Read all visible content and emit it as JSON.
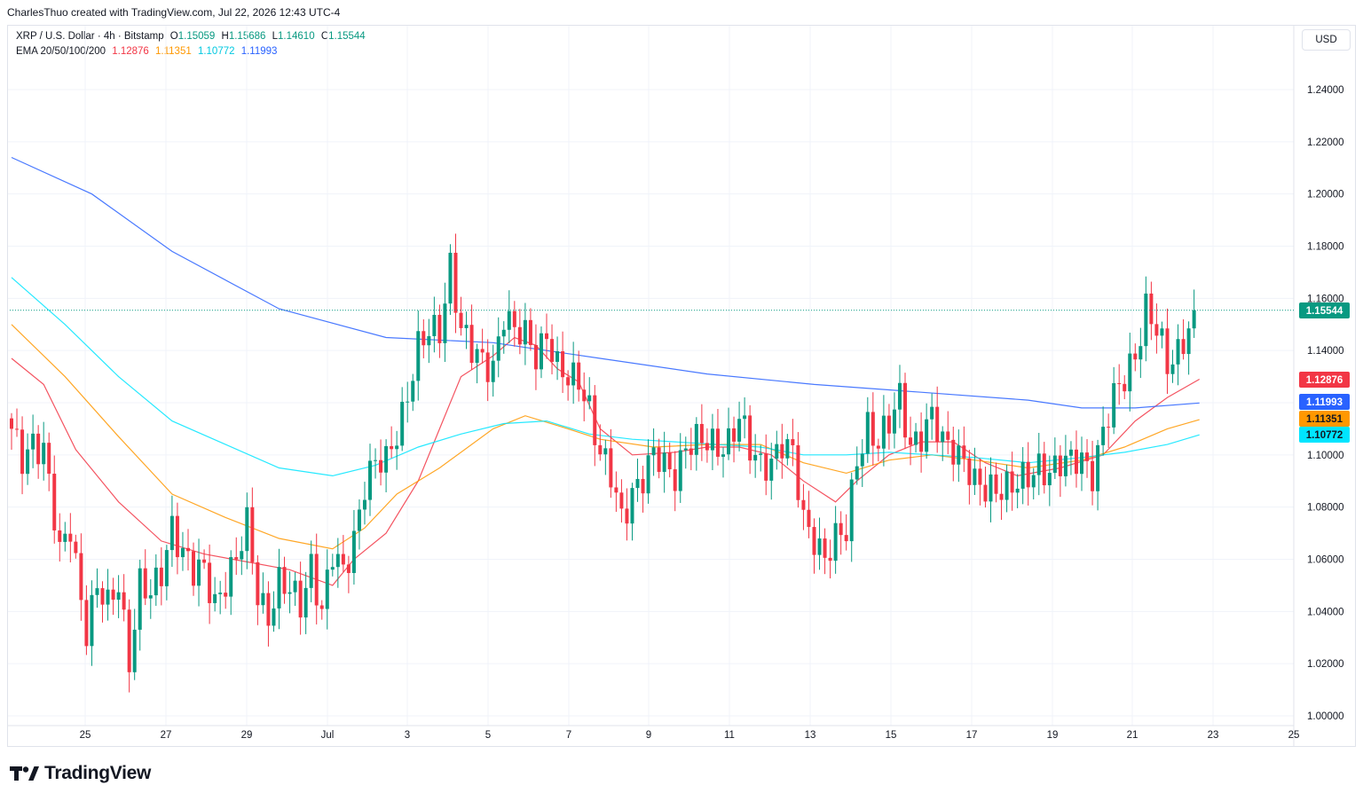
{
  "header": {
    "attribution": "CharlesThuo created with TradingView.com, Jul 22, 2026 12:43 UTC-4"
  },
  "legend": {
    "symbol": "XRP / U.S. Dollar · 4h · Bitstamp",
    "open_label": "O",
    "open": "1.15059",
    "high_label": "H",
    "high": "1.15686",
    "low_label": "L",
    "low": "1.14610",
    "close_label": "C",
    "close": "1.15544",
    "ema_label": "EMA 20/50/100/200",
    "ema20": "1.12876",
    "ema50": "1.11351",
    "ema100": "1.10772",
    "ema200": "1.11993"
  },
  "currency": "USD",
  "brand": {
    "name": "TradingView"
  },
  "colors": {
    "up": "#089981",
    "down": "#f23645",
    "ema20": "#f23645",
    "ema50": "#ff9800",
    "ema100": "#00e5ff",
    "ema200": "#2962ff",
    "grid": "#f0f3fa",
    "axis_text": "#131722"
  },
  "chart_data": {
    "type": "candlestick",
    "interval": "4h",
    "y_axis": {
      "ticks": [
        "1.24000",
        "1.22000",
        "1.20000",
        "1.18000",
        "1.16000",
        "1.14000",
        "1.12000",
        "1.10000",
        "1.08000",
        "1.06000",
        "1.04000",
        "1.02000",
        "1.00000"
      ],
      "ylim": [
        1.0,
        1.25
      ]
    },
    "x_axis": {
      "ticks": [
        "25",
        "27",
        "29",
        "Jul",
        "3",
        "5",
        "7",
        "9",
        "11",
        "13",
        "15",
        "17",
        "19",
        "21",
        "23",
        "25"
      ]
    },
    "last_price": "1.15544",
    "price_tags": [
      {
        "value": "1.15544",
        "series": "price",
        "color": "#089981"
      },
      {
        "value": "1.12876",
        "series": "EMA 20",
        "color": "#f23645"
      },
      {
        "value": "1.11993",
        "series": "EMA 200",
        "color": "#2962ff"
      },
      {
        "value": "1.11351",
        "series": "EMA 50",
        "color": "#ff9800"
      },
      {
        "value": "1.10772",
        "series": "EMA 100",
        "color": "#00e5ff"
      }
    ],
    "close_path": [
      [
        0,
        1.107
      ],
      [
        2,
        1.098
      ],
      [
        4,
        1.107
      ],
      [
        6,
        1.103
      ],
      [
        9,
        1.06
      ],
      [
        11,
        1.073
      ],
      [
        14,
        1.034
      ],
      [
        16,
        1.048
      ],
      [
        18,
        1.04
      ],
      [
        20,
        1.052
      ],
      [
        22,
        1.023
      ],
      [
        24,
        1.05
      ],
      [
        26,
        1.044
      ],
      [
        28,
        1.055
      ],
      [
        30,
        1.075
      ],
      [
        32,
        1.063
      ],
      [
        34,
        1.053
      ],
      [
        36,
        1.055
      ],
      [
        38,
        1.045
      ],
      [
        40,
        1.053
      ],
      [
        42,
        1.058
      ],
      [
        44,
        1.072
      ],
      [
        46,
        1.048
      ],
      [
        48,
        1.04
      ],
      [
        50,
        1.05
      ],
      [
        52,
        1.046
      ],
      [
        54,
        1.043
      ],
      [
        56,
        1.06
      ],
      [
        58,
        1.04
      ],
      [
        60,
        1.06
      ],
      [
        62,
        1.054
      ],
      [
        64,
        1.07
      ],
      [
        66,
        1.09
      ],
      [
        68,
        1.095
      ],
      [
        70,
        1.096
      ],
      [
        72,
        1.11
      ],
      [
        74,
        1.125
      ],
      [
        76,
        1.14
      ],
      [
        78,
        1.145
      ],
      [
        80,
        1.148
      ],
      [
        82,
        1.175
      ],
      [
        84,
        1.148
      ],
      [
        86,
        1.138
      ],
      [
        88,
        1.135
      ],
      [
        90,
        1.136
      ],
      [
        92,
        1.155
      ],
      [
        94,
        1.145
      ],
      [
        96,
        1.145
      ],
      [
        98,
        1.14
      ],
      [
        100,
        1.148
      ],
      [
        102,
        1.132
      ],
      [
        104,
        1.127
      ],
      [
        106,
        1.13
      ],
      [
        108,
        1.12
      ],
      [
        110,
        1.1
      ],
      [
        112,
        1.09
      ],
      [
        114,
        1.075
      ],
      [
        116,
        1.088
      ],
      [
        118,
        1.092
      ],
      [
        120,
        1.098
      ],
      [
        122,
        1.095
      ],
      [
        124,
        1.094
      ],
      [
        126,
        1.105
      ],
      [
        128,
        1.104
      ],
      [
        130,
        1.103
      ],
      [
        132,
        1.104
      ],
      [
        134,
        1.107
      ],
      [
        136,
        1.114
      ],
      [
        138,
        1.1
      ],
      [
        140,
        1.096
      ],
      [
        142,
        1.1
      ],
      [
        144,
        1.105
      ],
      [
        146,
        1.098
      ],
      [
        148,
        1.074
      ],
      [
        150,
        1.07
      ],
      [
        152,
        1.062
      ],
      [
        154,
        1.066
      ],
      [
        156,
        1.069
      ],
      [
        158,
        1.1
      ],
      [
        160,
        1.113
      ],
      [
        162,
        1.103
      ],
      [
        164,
        1.11
      ],
      [
        166,
        1.123
      ],
      [
        168,
        1.106
      ],
      [
        170,
        1.107
      ],
      [
        172,
        1.112
      ],
      [
        174,
        1.105
      ],
      [
        176,
        1.105
      ],
      [
        178,
        1.099
      ],
      [
        180,
        1.087
      ],
      [
        182,
        1.085
      ],
      [
        184,
        1.089
      ],
      [
        186,
        1.09
      ],
      [
        188,
        1.088
      ],
      [
        190,
        1.089
      ],
      [
        192,
        1.096
      ],
      [
        194,
        1.096
      ],
      [
        196,
        1.097
      ],
      [
        198,
        1.095
      ],
      [
        200,
        1.098
      ],
      [
        202,
        1.095
      ],
      [
        204,
        1.11
      ],
      [
        206,
        1.12
      ],
      [
        208,
        1.128
      ],
      [
        210,
        1.14
      ],
      [
        212,
        1.158
      ],
      [
        214,
        1.147
      ],
      [
        216,
        1.132
      ],
      [
        218,
        1.14
      ],
      [
        220,
        1.152
      ],
      [
        221,
        1.155
      ]
    ],
    "ema_paths": {
      "ema20": [
        [
          0,
          1.137
        ],
        [
          6,
          1.127
        ],
        [
          12,
          1.102
        ],
        [
          20,
          1.082
        ],
        [
          28,
          1.067
        ],
        [
          36,
          1.062
        ],
        [
          44,
          1.059
        ],
        [
          52,
          1.056
        ],
        [
          60,
          1.05
        ],
        [
          64,
          1.06
        ],
        [
          70,
          1.07
        ],
        [
          76,
          1.09
        ],
        [
          80,
          1.11
        ],
        [
          84,
          1.13
        ],
        [
          90,
          1.138
        ],
        [
          94,
          1.145
        ],
        [
          98,
          1.142
        ],
        [
          102,
          1.133
        ],
        [
          106,
          1.128
        ],
        [
          110,
          1.11
        ],
        [
          116,
          1.1
        ],
        [
          124,
          1.101
        ],
        [
          130,
          1.103
        ],
        [
          136,
          1.103
        ],
        [
          142,
          1.1
        ],
        [
          148,
          1.09
        ],
        [
          154,
          1.082
        ],
        [
          158,
          1.09
        ],
        [
          164,
          1.1
        ],
        [
          170,
          1.105
        ],
        [
          176,
          1.105
        ],
        [
          182,
          1.097
        ],
        [
          188,
          1.092
        ],
        [
          196,
          1.095
        ],
        [
          204,
          1.1
        ],
        [
          210,
          1.113
        ],
        [
          216,
          1.122
        ],
        [
          222,
          1.129
        ]
      ],
      "ema50": [
        [
          0,
          1.15
        ],
        [
          10,
          1.13
        ],
        [
          20,
          1.107
        ],
        [
          30,
          1.085
        ],
        [
          40,
          1.076
        ],
        [
          50,
          1.068
        ],
        [
          60,
          1.064
        ],
        [
          66,
          1.072
        ],
        [
          72,
          1.085
        ],
        [
          80,
          1.095
        ],
        [
          90,
          1.11
        ],
        [
          96,
          1.115
        ],
        [
          104,
          1.11
        ],
        [
          110,
          1.106
        ],
        [
          120,
          1.103
        ],
        [
          130,
          1.104
        ],
        [
          140,
          1.104
        ],
        [
          148,
          1.097
        ],
        [
          156,
          1.093
        ],
        [
          164,
          1.098
        ],
        [
          172,
          1.1
        ],
        [
          180,
          1.098
        ],
        [
          190,
          1.095
        ],
        [
          200,
          1.098
        ],
        [
          208,
          1.103
        ],
        [
          216,
          1.11
        ],
        [
          222,
          1.1135
        ]
      ],
      "ema100": [
        [
          0,
          1.168
        ],
        [
          10,
          1.15
        ],
        [
          20,
          1.13
        ],
        [
          30,
          1.113
        ],
        [
          40,
          1.104
        ],
        [
          50,
          1.095
        ],
        [
          60,
          1.092
        ],
        [
          68,
          1.096
        ],
        [
          76,
          1.103
        ],
        [
          84,
          1.108
        ],
        [
          92,
          1.112
        ],
        [
          100,
          1.113
        ],
        [
          108,
          1.108
        ],
        [
          116,
          1.106
        ],
        [
          124,
          1.105
        ],
        [
          132,
          1.104
        ],
        [
          140,
          1.103
        ],
        [
          148,
          1.1
        ],
        [
          156,
          1.1
        ],
        [
          164,
          1.101
        ],
        [
          172,
          1.1
        ],
        [
          180,
          1.099
        ],
        [
          190,
          1.097
        ],
        [
          200,
          1.099
        ],
        [
          208,
          1.101
        ],
        [
          216,
          1.104
        ],
        [
          222,
          1.1077
        ]
      ],
      "ema200": [
        [
          0,
          1.214
        ],
        [
          15,
          1.2
        ],
        [
          30,
          1.178
        ],
        [
          50,
          1.156
        ],
        [
          70,
          1.145
        ],
        [
          90,
          1.143
        ],
        [
          110,
          1.137
        ],
        [
          130,
          1.131
        ],
        [
          150,
          1.127
        ],
        [
          170,
          1.124
        ],
        [
          190,
          1.121
        ],
        [
          200,
          1.118
        ],
        [
          210,
          1.118
        ],
        [
          222,
          1.1199
        ]
      ]
    }
  }
}
